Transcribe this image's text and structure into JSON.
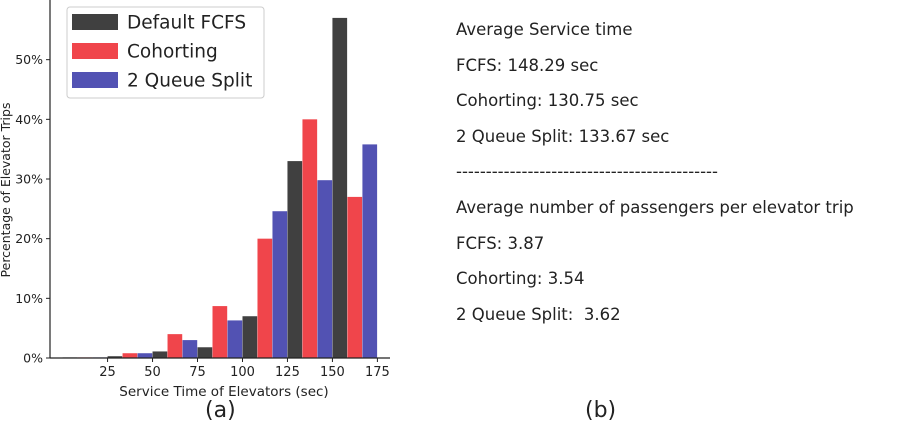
{
  "chart_data": {
    "type": "bar",
    "xlabel": "Service Time of Elevators (sec)",
    "ylabel": "Percentage of Elevator Trips",
    "x_ticks": [
      "25",
      "50",
      "75",
      "100",
      "125",
      "150",
      "175"
    ],
    "y_ticks": [
      "0%",
      "10%",
      "20%",
      "30%",
      "40%",
      "50%"
    ],
    "bin_starts": [
      0,
      25,
      50,
      75,
      100,
      125,
      150
    ],
    "bin_width": 25,
    "xlim": [
      -7,
      182
    ],
    "ylim": [
      0,
      60
    ],
    "legend_position": "top-left",
    "series": [
      {
        "name": "Default FCFS",
        "color": "#404040",
        "values": [
          0.1,
          0.3,
          1.1,
          1.8,
          7.0,
          33.0,
          57.0
        ]
      },
      {
        "name": "Cohorting",
        "color": "#f0454b",
        "values": [
          0.1,
          0.8,
          4.0,
          8.7,
          20.0,
          40.0,
          27.0
        ]
      },
      {
        "name": "2 Queue Split",
        "color": "#5252b3",
        "values": [
          0.1,
          0.8,
          3.0,
          6.3,
          24.6,
          29.8,
          35.8
        ]
      }
    ]
  },
  "stats": {
    "lines": [
      "Average Service time",
      "FCFS: 148.29 sec",
      "Cohorting: 130.75 sec",
      "2 Queue Split: 133.67 sec",
      "--------------------------------------------",
      "Average number of passengers per elevator trip",
      "FCFS: 3.87",
      "Cohorting: 3.54",
      "2 Queue Split:  3.62"
    ]
  },
  "captions": {
    "a": "(a)",
    "b": "(b)"
  }
}
